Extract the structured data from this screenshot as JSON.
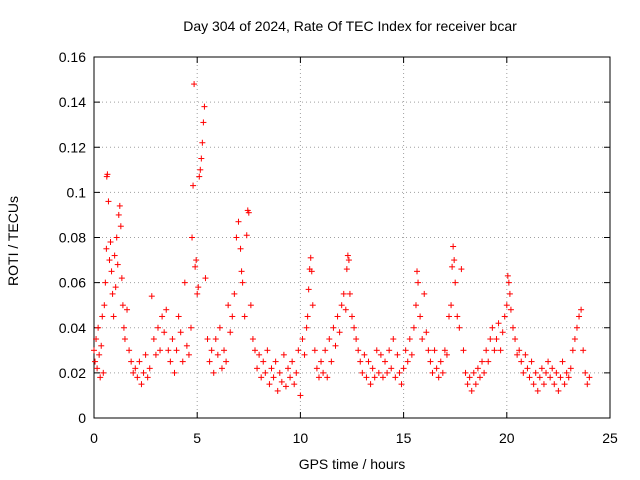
{
  "chart_data": {
    "type": "scatter",
    "title": "Day 304 of 2024, Rate Of TEC Index for receiver bcar",
    "xlabel": "GPS time / hours",
    "ylabel": "ROTI / TECUs",
    "xlim": [
      0,
      25
    ],
    "ylim": [
      0,
      0.16
    ],
    "x_ticks": [
      0,
      5,
      10,
      15,
      20,
      25
    ],
    "y_ticks": [
      0,
      0.02,
      0.04,
      0.06,
      0.08,
      0.1,
      0.12,
      0.14,
      0.16
    ],
    "y_tick_labels": [
      "0",
      "0.02",
      "0.04",
      "0.06",
      "0.08",
      "0.1",
      "0.12",
      "0.14",
      "0.16"
    ],
    "grid": true,
    "marker": "+",
    "color": "#ff0000",
    "series": [
      {
        "points": [
          [
            0.0,
            0.03
          ],
          [
            0.05,
            0.025
          ],
          [
            0.1,
            0.035
          ],
          [
            0.15,
            0.022
          ],
          [
            0.2,
            0.04
          ],
          [
            0.25,
            0.028
          ],
          [
            0.3,
            0.018
          ],
          [
            0.35,
            0.032
          ],
          [
            0.4,
            0.045
          ],
          [
            0.45,
            0.02
          ],
          [
            0.5,
            0.05
          ],
          [
            0.55,
            0.06
          ],
          [
            0.6,
            0.075
          ],
          [
            0.62,
            0.107
          ],
          [
            0.65,
            0.108
          ],
          [
            0.7,
            0.096
          ],
          [
            0.75,
            0.07
          ],
          [
            0.8,
            0.078
          ],
          [
            0.85,
            0.065
          ],
          [
            0.9,
            0.055
          ],
          [
            0.95,
            0.045
          ],
          [
            1.0,
            0.072
          ],
          [
            1.05,
            0.058
          ],
          [
            1.1,
            0.08
          ],
          [
            1.15,
            0.068
          ],
          [
            1.2,
            0.09
          ],
          [
            1.25,
            0.094
          ],
          [
            1.3,
            0.085
          ],
          [
            1.35,
            0.062
          ],
          [
            1.4,
            0.05
          ],
          [
            1.45,
            0.04
          ],
          [
            1.5,
            0.035
          ],
          [
            1.6,
            0.048
          ],
          [
            1.7,
            0.03
          ],
          [
            1.8,
            0.025
          ],
          [
            1.9,
            0.02
          ],
          [
            2.0,
            0.022
          ],
          [
            2.1,
            0.018
          ],
          [
            2.2,
            0.025
          ],
          [
            2.3,
            0.015
          ],
          [
            2.4,
            0.02
          ],
          [
            2.5,
            0.028
          ],
          [
            2.6,
            0.018
          ],
          [
            2.7,
            0.022
          ],
          [
            2.8,
            0.054
          ],
          [
            2.9,
            0.035
          ],
          [
            3.0,
            0.028
          ],
          [
            3.1,
            0.04
          ],
          [
            3.2,
            0.03
          ],
          [
            3.3,
            0.045
          ],
          [
            3.4,
            0.038
          ],
          [
            3.5,
            0.048
          ],
          [
            3.6,
            0.03
          ],
          [
            3.7,
            0.025
          ],
          [
            3.8,
            0.035
          ],
          [
            3.9,
            0.02
          ],
          [
            4.0,
            0.03
          ],
          [
            4.1,
            0.045
          ],
          [
            4.2,
            0.038
          ],
          [
            4.3,
            0.025
          ],
          [
            4.4,
            0.06
          ],
          [
            4.5,
            0.032
          ],
          [
            4.6,
            0.028
          ],
          [
            4.7,
            0.04
          ],
          [
            4.75,
            0.08
          ],
          [
            4.8,
            0.103
          ],
          [
            4.85,
            0.148
          ],
          [
            4.9,
            0.067
          ],
          [
            4.95,
            0.07
          ],
          [
            5.0,
            0.055
          ],
          [
            5.05,
            0.058
          ],
          [
            5.1,
            0.107
          ],
          [
            5.15,
            0.11
          ],
          [
            5.2,
            0.115
          ],
          [
            5.25,
            0.122
          ],
          [
            5.3,
            0.131
          ],
          [
            5.35,
            0.138
          ],
          [
            5.4,
            0.062
          ],
          [
            5.5,
            0.035
          ],
          [
            5.6,
            0.025
          ],
          [
            5.7,
            0.03
          ],
          [
            5.8,
            0.02
          ],
          [
            5.9,
            0.035
          ],
          [
            6.0,
            0.028
          ],
          [
            6.1,
            0.04
          ],
          [
            6.2,
            0.022
          ],
          [
            6.3,
            0.03
          ],
          [
            6.4,
            0.025
          ],
          [
            6.5,
            0.05
          ],
          [
            6.6,
            0.038
          ],
          [
            6.7,
            0.045
          ],
          [
            6.8,
            0.055
          ],
          [
            6.9,
            0.08
          ],
          [
            7.0,
            0.087
          ],
          [
            7.1,
            0.075
          ],
          [
            7.15,
            0.065
          ],
          [
            7.2,
            0.06
          ],
          [
            7.3,
            0.045
          ],
          [
            7.4,
            0.081
          ],
          [
            7.45,
            0.092
          ],
          [
            7.5,
            0.091
          ],
          [
            7.6,
            0.05
          ],
          [
            7.7,
            0.035
          ],
          [
            7.8,
            0.03
          ],
          [
            7.9,
            0.022
          ],
          [
            8.0,
            0.028
          ],
          [
            8.1,
            0.018
          ],
          [
            8.2,
            0.025
          ],
          [
            8.3,
            0.02
          ],
          [
            8.4,
            0.03
          ],
          [
            8.5,
            0.015
          ],
          [
            8.6,
            0.022
          ],
          [
            8.7,
            0.018
          ],
          [
            8.8,
            0.025
          ],
          [
            8.9,
            0.012
          ],
          [
            9.0,
            0.02
          ],
          [
            9.1,
            0.016
          ],
          [
            9.2,
            0.028
          ],
          [
            9.3,
            0.014
          ],
          [
            9.4,
            0.022
          ],
          [
            9.5,
            0.018
          ],
          [
            9.6,
            0.025
          ],
          [
            9.7,
            0.015
          ],
          [
            9.8,
            0.02
          ],
          [
            9.9,
            0.03
          ],
          [
            10.0,
            0.01
          ],
          [
            10.1,
            0.035
          ],
          [
            10.2,
            0.028
          ],
          [
            10.3,
            0.04
          ],
          [
            10.35,
            0.045
          ],
          [
            10.4,
            0.057
          ],
          [
            10.45,
            0.066
          ],
          [
            10.5,
            0.071
          ],
          [
            10.55,
            0.065
          ],
          [
            10.6,
            0.05
          ],
          [
            10.7,
            0.03
          ],
          [
            10.8,
            0.022
          ],
          [
            10.9,
            0.018
          ],
          [
            11.0,
            0.025
          ],
          [
            11.1,
            0.02
          ],
          [
            11.2,
            0.03
          ],
          [
            11.3,
            0.018
          ],
          [
            11.4,
            0.035
          ],
          [
            11.5,
            0.025
          ],
          [
            11.6,
            0.04
          ],
          [
            11.7,
            0.032
          ],
          [
            11.8,
            0.045
          ],
          [
            11.9,
            0.038
          ],
          [
            12.0,
            0.05
          ],
          [
            12.1,
            0.055
          ],
          [
            12.2,
            0.048
          ],
          [
            12.25,
            0.066
          ],
          [
            12.3,
            0.072
          ],
          [
            12.35,
            0.07
          ],
          [
            12.4,
            0.055
          ],
          [
            12.5,
            0.045
          ],
          [
            12.6,
            0.04
          ],
          [
            12.7,
            0.035
          ],
          [
            12.8,
            0.03
          ],
          [
            12.9,
            0.025
          ],
          [
            13.0,
            0.02
          ],
          [
            13.1,
            0.028
          ],
          [
            13.2,
            0.018
          ],
          [
            13.3,
            0.025
          ],
          [
            13.4,
            0.015
          ],
          [
            13.5,
            0.022
          ],
          [
            13.6,
            0.018
          ],
          [
            13.7,
            0.03
          ],
          [
            13.8,
            0.02
          ],
          [
            13.9,
            0.028
          ],
          [
            14.0,
            0.018
          ],
          [
            14.1,
            0.025
          ],
          [
            14.2,
            0.02
          ],
          [
            14.3,
            0.03
          ],
          [
            14.4,
            0.022
          ],
          [
            14.5,
            0.035
          ],
          [
            14.6,
            0.018
          ],
          [
            14.7,
            0.028
          ],
          [
            14.8,
            0.02
          ],
          [
            14.9,
            0.015
          ],
          [
            15.0,
            0.022
          ],
          [
            15.1,
            0.03
          ],
          [
            15.2,
            0.025
          ],
          [
            15.3,
            0.035
          ],
          [
            15.4,
            0.028
          ],
          [
            15.5,
            0.04
          ],
          [
            15.6,
            0.05
          ],
          [
            15.65,
            0.065
          ],
          [
            15.7,
            0.06
          ],
          [
            15.8,
            0.045
          ],
          [
            15.9,
            0.035
          ],
          [
            16.0,
            0.055
          ],
          [
            16.1,
            0.038
          ],
          [
            16.2,
            0.03
          ],
          [
            16.3,
            0.025
          ],
          [
            16.4,
            0.02
          ],
          [
            16.5,
            0.03
          ],
          [
            16.6,
            0.022
          ],
          [
            16.7,
            0.018
          ],
          [
            16.8,
            0.025
          ],
          [
            16.9,
            0.02
          ],
          [
            17.0,
            0.03
          ],
          [
            17.1,
            0.028
          ],
          [
            17.2,
            0.045
          ],
          [
            17.3,
            0.05
          ],
          [
            17.35,
            0.067
          ],
          [
            17.4,
            0.076
          ],
          [
            17.45,
            0.07
          ],
          [
            17.5,
            0.06
          ],
          [
            17.6,
            0.045
          ],
          [
            17.7,
            0.04
          ],
          [
            17.8,
            0.066
          ],
          [
            17.9,
            0.03
          ],
          [
            18.0,
            0.02
          ],
          [
            18.1,
            0.015
          ],
          [
            18.2,
            0.018
          ],
          [
            18.3,
            0.012
          ],
          [
            18.4,
            0.02
          ],
          [
            18.5,
            0.015
          ],
          [
            18.6,
            0.022
          ],
          [
            18.7,
            0.018
          ],
          [
            18.8,
            0.025
          ],
          [
            18.9,
            0.02
          ],
          [
            19.0,
            0.03
          ],
          [
            19.1,
            0.025
          ],
          [
            19.2,
            0.035
          ],
          [
            19.3,
            0.04
          ],
          [
            19.4,
            0.03
          ],
          [
            19.5,
            0.035
          ],
          [
            19.6,
            0.042
          ],
          [
            19.7,
            0.03
          ],
          [
            19.8,
            0.038
          ],
          [
            19.9,
            0.045
          ],
          [
            20.0,
            0.05
          ],
          [
            20.05,
            0.063
          ],
          [
            20.1,
            0.06
          ],
          [
            20.15,
            0.055
          ],
          [
            20.2,
            0.048
          ],
          [
            20.3,
            0.04
          ],
          [
            20.4,
            0.035
          ],
          [
            20.5,
            0.028
          ],
          [
            20.6,
            0.03
          ],
          [
            20.7,
            0.025
          ],
          [
            20.8,
            0.02
          ],
          [
            20.9,
            0.028
          ],
          [
            21.0,
            0.022
          ],
          [
            21.1,
            0.018
          ],
          [
            21.2,
            0.025
          ],
          [
            21.3,
            0.015
          ],
          [
            21.4,
            0.02
          ],
          [
            21.5,
            0.012
          ],
          [
            21.6,
            0.018
          ],
          [
            21.7,
            0.022
          ],
          [
            21.8,
            0.015
          ],
          [
            21.9,
            0.02
          ],
          [
            22.0,
            0.025
          ],
          [
            22.1,
            0.018
          ],
          [
            22.2,
            0.022
          ],
          [
            22.3,
            0.015
          ],
          [
            22.4,
            0.02
          ],
          [
            22.5,
            0.012
          ],
          [
            22.6,
            0.018
          ],
          [
            22.7,
            0.025
          ],
          [
            22.8,
            0.015
          ],
          [
            22.9,
            0.02
          ],
          [
            23.0,
            0.018
          ],
          [
            23.1,
            0.022
          ],
          [
            23.2,
            0.03
          ],
          [
            23.3,
            0.035
          ],
          [
            23.4,
            0.04
          ],
          [
            23.5,
            0.045
          ],
          [
            23.6,
            0.048
          ],
          [
            23.7,
            0.03
          ],
          [
            23.8,
            0.02
          ],
          [
            23.9,
            0.015
          ],
          [
            24.0,
            0.018
          ]
        ]
      }
    ]
  }
}
